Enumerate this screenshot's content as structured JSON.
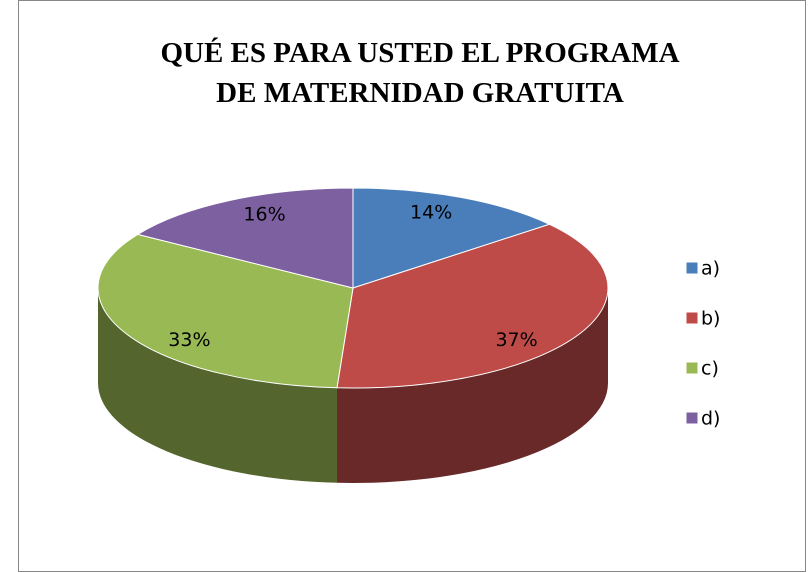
{
  "chart_data": {
    "type": "pie",
    "title": "QUÉ ES PARA USTED EL PROGRAMA DE MATERNIDAD GRATUITA",
    "categories": [
      "a)",
      "b)",
      "c)",
      "d)"
    ],
    "values": [
      14,
      37,
      33,
      16
    ],
    "value_labels": [
      "14%",
      "37%",
      "33%",
      "16%"
    ],
    "colors": [
      "#4a7ebb",
      "#be4b48",
      "#98b954",
      "#7d60a0"
    ],
    "legend": "right"
  }
}
